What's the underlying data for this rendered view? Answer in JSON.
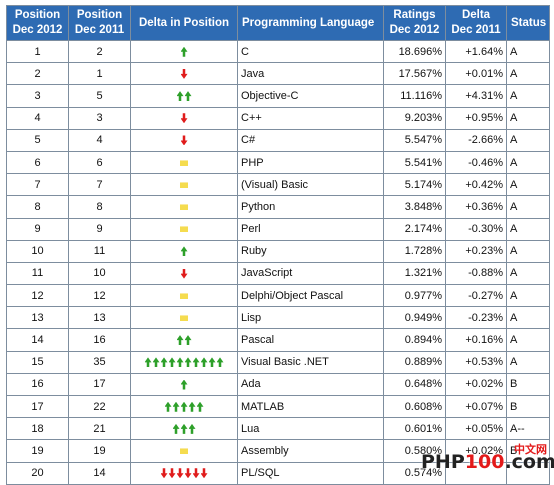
{
  "headers": {
    "pos2012": [
      "Position",
      "Dec 2012"
    ],
    "pos2011": [
      "Position",
      "Dec 2011"
    ],
    "delta": "Delta in Position",
    "language": "Programming Language",
    "ratings": [
      "Ratings",
      "Dec 2012"
    ],
    "delta_rating": [
      "Delta",
      "Dec 2011"
    ],
    "status": "Status"
  },
  "rows": [
    {
      "pos2012": "1",
      "pos2011": "2",
      "arrow": "up",
      "count": 1,
      "language": "C",
      "rating": "18.696%",
      "delta": "+1.64%",
      "status": "A"
    },
    {
      "pos2012": "2",
      "pos2011": "1",
      "arrow": "down",
      "count": 1,
      "language": "Java",
      "rating": "17.567%",
      "delta": "+0.01%",
      "status": "A"
    },
    {
      "pos2012": "3",
      "pos2011": "5",
      "arrow": "up",
      "count": 2,
      "language": "Objective-C",
      "rating": "11.116%",
      "delta": "+4.31%",
      "status": "A"
    },
    {
      "pos2012": "4",
      "pos2011": "3",
      "arrow": "down",
      "count": 1,
      "language": "C++",
      "rating": "9.203%",
      "delta": "+0.95%",
      "status": "A"
    },
    {
      "pos2012": "5",
      "pos2011": "4",
      "arrow": "down",
      "count": 1,
      "language": "C#",
      "rating": "5.547%",
      "delta": "-2.66%",
      "status": "A"
    },
    {
      "pos2012": "6",
      "pos2011": "6",
      "arrow": "same",
      "count": 1,
      "language": "PHP",
      "rating": "5.541%",
      "delta": "-0.46%",
      "status": "A"
    },
    {
      "pos2012": "7",
      "pos2011": "7",
      "arrow": "same",
      "count": 1,
      "language": "(Visual) Basic",
      "rating": "5.174%",
      "delta": "+0.42%",
      "status": "A"
    },
    {
      "pos2012": "8",
      "pos2011": "8",
      "arrow": "same",
      "count": 1,
      "language": "Python",
      "rating": "3.848%",
      "delta": "+0.36%",
      "status": "A"
    },
    {
      "pos2012": "9",
      "pos2011": "9",
      "arrow": "same",
      "count": 1,
      "language": "Perl",
      "rating": "2.174%",
      "delta": "-0.30%",
      "status": "A"
    },
    {
      "pos2012": "10",
      "pos2011": "11",
      "arrow": "up",
      "count": 1,
      "language": "Ruby",
      "rating": "1.728%",
      "delta": "+0.23%",
      "status": "A"
    },
    {
      "pos2012": "11",
      "pos2011": "10",
      "arrow": "down",
      "count": 1,
      "language": "JavaScript",
      "rating": "1.321%",
      "delta": "-0.88%",
      "status": "A"
    },
    {
      "pos2012": "12",
      "pos2011": "12",
      "arrow": "same",
      "count": 1,
      "language": "Delphi/Object Pascal",
      "rating": "0.977%",
      "delta": "-0.27%",
      "status": "A"
    },
    {
      "pos2012": "13",
      "pos2011": "13",
      "arrow": "same",
      "count": 1,
      "language": "Lisp",
      "rating": "0.949%",
      "delta": "-0.23%",
      "status": "A"
    },
    {
      "pos2012": "14",
      "pos2011": "16",
      "arrow": "up",
      "count": 2,
      "language": "Pascal",
      "rating": "0.894%",
      "delta": "+0.16%",
      "status": "A"
    },
    {
      "pos2012": "15",
      "pos2011": "35",
      "arrow": "up",
      "count": 10,
      "language": "Visual Basic .NET",
      "rating": "0.889%",
      "delta": "+0.53%",
      "status": "A"
    },
    {
      "pos2012": "16",
      "pos2011": "17",
      "arrow": "up",
      "count": 1,
      "language": "Ada",
      "rating": "0.648%",
      "delta": "+0.02%",
      "status": "B"
    },
    {
      "pos2012": "17",
      "pos2011": "22",
      "arrow": "up",
      "count": 5,
      "language": "MATLAB",
      "rating": "0.608%",
      "delta": "+0.07%",
      "status": "B"
    },
    {
      "pos2012": "18",
      "pos2011": "21",
      "arrow": "up",
      "count": 3,
      "language": "Lua",
      "rating": "0.601%",
      "delta": "+0.05%",
      "status": "A--"
    },
    {
      "pos2012": "19",
      "pos2011": "19",
      "arrow": "same",
      "count": 1,
      "language": "Assembly",
      "rating": "0.580%",
      "delta": "+0.02%",
      "status": "B"
    },
    {
      "pos2012": "20",
      "pos2011": "14",
      "arrow": "down",
      "count": 6,
      "language": "PL/SQL",
      "rating": "0.574%",
      "delta": "",
      "status": ""
    }
  ],
  "watermark": {
    "php": "PHP",
    "num": "100",
    "dotcom": ".com",
    "cn": "中文网"
  },
  "colors": {
    "header_bg": "#2e6bb3",
    "up_arrow": "#2ea02a",
    "down_arrow": "#e01c1c",
    "same_bar": "#f5dc4f",
    "language_link": "#2a3fb5"
  }
}
